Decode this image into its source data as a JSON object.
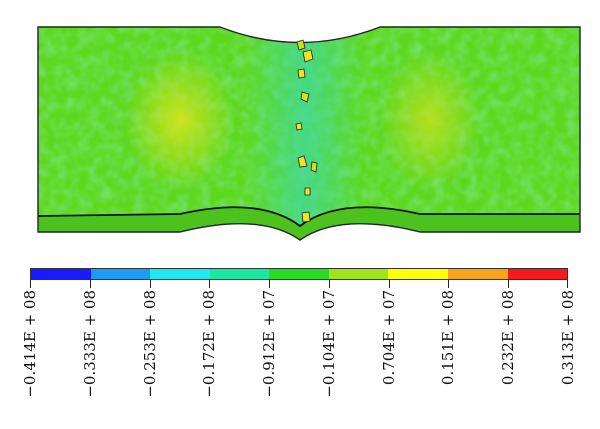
{
  "figure": {
    "legend": {
      "colors": [
        "#1a1aff",
        "#1e9cf2",
        "#1ee8f0",
        "#18e8a0",
        "#28dc24",
        "#9ee61a",
        "#ffff0a",
        "#f5a51a",
        "#f51a1a"
      ],
      "labels": [
        "−0.414E + 08",
        "−0.333E + 08",
        "−0.253E + 08",
        "−0.172E + 08",
        "−0.912E + 07",
        "−0.104E + 07",
        "0.704E + 07",
        "0.151E + 08",
        "0.232E + 08",
        "0.313E + 08"
      ]
    },
    "contour": {
      "dominant_color": "#5fd81f",
      "hotspot_colors": [
        "#f0e61a",
        "#c8d81e"
      ],
      "center_band_color": "#3fd89a"
    }
  }
}
